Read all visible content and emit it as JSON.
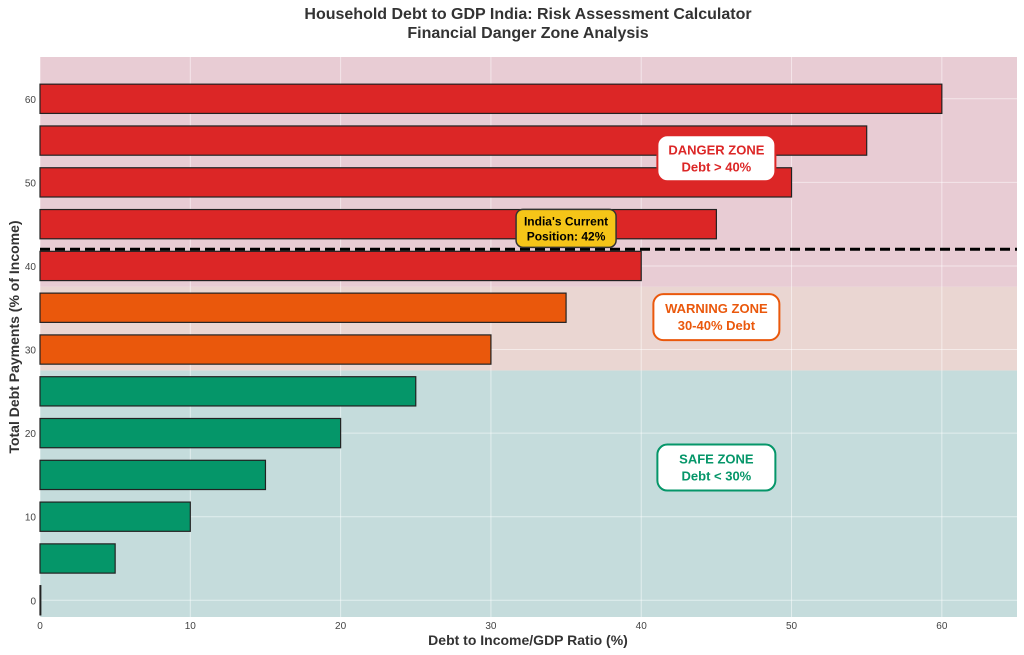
{
  "chart_data": {
    "type": "bar",
    "orientation": "horizontal",
    "title": "Household Debt to GDP India: Risk Assessment Calculator",
    "subtitle": "Financial Danger Zone Analysis",
    "xlabel": "Debt to Income/GDP Ratio (%)",
    "ylabel": "Total Debt Payments (% of Income)",
    "xlim": [
      0,
      65
    ],
    "ylim": [
      -2,
      65
    ],
    "xticks": [
      0,
      10,
      20,
      30,
      40,
      50,
      60
    ],
    "yticks": [
      0,
      10,
      20,
      30,
      40,
      50,
      60
    ],
    "grid": true,
    "bars": [
      {
        "y": 0,
        "value": 0
      },
      {
        "y": 5,
        "value": 5
      },
      {
        "y": 10,
        "value": 10
      },
      {
        "y": 15,
        "value": 15
      },
      {
        "y": 20,
        "value": 20
      },
      {
        "y": 25,
        "value": 25
      },
      {
        "y": 30,
        "value": 30
      },
      {
        "y": 35,
        "value": 35
      },
      {
        "y": 40,
        "value": 40
      },
      {
        "y": 45,
        "value": 45
      },
      {
        "y": 50,
        "value": 50
      },
      {
        "y": 55,
        "value": 55
      },
      {
        "y": 60,
        "value": 60
      }
    ],
    "zones": [
      {
        "name": "safe",
        "from": -2,
        "to": 27.5,
        "fill": "#c5dcdc",
        "bar_color": "#059669",
        "label_line1": "SAFE ZONE",
        "label_line2": "Debt < 30%",
        "label_at": [
          45,
          16
        ]
      },
      {
        "name": "warning",
        "from": 27.5,
        "to": 37.5,
        "fill": "#ead6d2",
        "bar_color": "#ea580c",
        "label_line1": "WARNING ZONE",
        "label_line2": "30-40% Debt",
        "label_at": [
          45,
          34
        ]
      },
      {
        "name": "danger",
        "from": 37.5,
        "to": 65,
        "fill": "#e8ccd4",
        "bar_color": "#dc2626",
        "label_line1": "DANGER ZONE",
        "label_line2": "Debt > 40%",
        "label_at": [
          45,
          53
        ]
      }
    ],
    "reference_line": {
      "y": 42,
      "style": "dashed",
      "color": "#000000"
    },
    "annotation": {
      "line1": "India's Current",
      "line2": "Position: 42%",
      "at": [
        35,
        44.5
      ],
      "fill": "#f5c518"
    }
  }
}
